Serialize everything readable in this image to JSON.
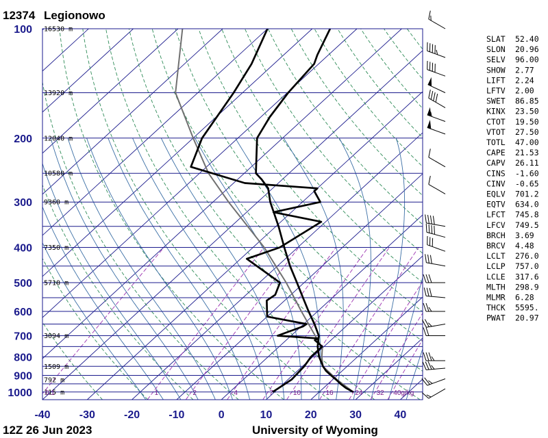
{
  "header": {
    "station_id": "12374",
    "station_name": "Legionowo"
  },
  "footer": {
    "time": "12Z 26 Jun 2023",
    "source": "University of Wyoming"
  },
  "colors": {
    "isobar": "#1a1a8c",
    "isotherm": "#1a1a8c",
    "dry_adiabat": "#2e8b57",
    "moist_adiabat": "#3a6ea5",
    "mixing_ratio": "#9b30b0",
    "temperature": "#000000",
    "dewpoint": "#000000",
    "parcel": "#707070"
  },
  "chart_data": {
    "type": "skew-t log-p",
    "pressure_ticks": [
      100,
      200,
      300,
      400,
      500,
      600,
      700,
      800,
      900,
      1000
    ],
    "temperature_ticks": [
      -40,
      -30,
      -20,
      -10,
      0,
      10,
      20,
      30,
      40
    ],
    "pressure_range_hPa": [
      100,
      1050
    ],
    "temperature_range_C": [
      -40,
      45
    ],
    "height_labels": [
      {
        "p": 100,
        "text": "16530 m"
      },
      {
        "p": 150,
        "text": "13920 m"
      },
      {
        "p": 200,
        "text": "12040 m"
      },
      {
        "p": 250,
        "text": "10580 m"
      },
      {
        "p": 300,
        "text": "9360 m"
      },
      {
        "p": 400,
        "text": "7350 m"
      },
      {
        "p": 500,
        "text": "5710 m"
      },
      {
        "p": 700,
        "text": "3094 m"
      },
      {
        "p": 850,
        "text": "1509 m"
      },
      {
        "p": 925,
        "text": "792 m"
      },
      {
        "p": 1000,
        "text": "115 m"
      }
    ],
    "mixing_ratio_labels": [
      "0.1",
      "1",
      "2",
      "4",
      "7",
      "10",
      "16",
      "24",
      "32",
      "40g/kg"
    ],
    "mixing_ratio_values": [
      0.1,
      1,
      2,
      4,
      7,
      10,
      16,
      24,
      32,
      40
    ],
    "temperature_profile": [
      {
        "p": 1000,
        "t": 27.6
      },
      {
        "p": 975,
        "t": 25.0
      },
      {
        "p": 950,
        "t": 22.8
      },
      {
        "p": 925,
        "t": 20.8
      },
      {
        "p": 900,
        "t": 18.6
      },
      {
        "p": 875,
        "t": 16.4
      },
      {
        "p": 850,
        "t": 14.6
      },
      {
        "p": 800,
        "t": 11.4
      },
      {
        "p": 750,
        "t": 8.6
      },
      {
        "p": 700,
        "t": 6.2
      },
      {
        "p": 650,
        "t": 2.4
      },
      {
        "p": 600,
        "t": -2.0
      },
      {
        "p": 550,
        "t": -6.6
      },
      {
        "p": 500,
        "t": -11.6
      },
      {
        "p": 450,
        "t": -17.2
      },
      {
        "p": 400,
        "t": -23.0
      },
      {
        "p": 350,
        "t": -29.4
      },
      {
        "p": 300,
        "t": -37.2
      },
      {
        "p": 275,
        "t": -41.0
      },
      {
        "p": 260,
        "t": -44.6
      },
      {
        "p": 250,
        "t": -47.4
      },
      {
        "p": 230,
        "t": -50.5
      },
      {
        "p": 200,
        "t": -55.7
      },
      {
        "p": 175,
        "t": -58.0
      },
      {
        "p": 150,
        "t": -59.8
      },
      {
        "p": 125,
        "t": -61.0
      },
      {
        "p": 118,
        "t": -62.5
      },
      {
        "p": 100,
        "t": -66.0
      }
    ],
    "dewpoint_profile": [
      {
        "p": 1000,
        "t": 9.6
      },
      {
        "p": 925,
        "t": 10.8
      },
      {
        "p": 850,
        "t": 10.4
      },
      {
        "p": 800,
        "t": 9.6
      },
      {
        "p": 750,
        "t": 9.6
      },
      {
        "p": 720,
        "t": 6.4
      },
      {
        "p": 712,
        "t": 6.7
      },
      {
        "p": 700,
        "t": -3.0
      },
      {
        "p": 660,
        "t": 0.4
      },
      {
        "p": 650,
        "t": 0.6
      },
      {
        "p": 620,
        "t": -10.0
      },
      {
        "p": 560,
        "t": -14.0
      },
      {
        "p": 540,
        "t": -13.5
      },
      {
        "p": 500,
        "t": -15.4
      },
      {
        "p": 430,
        "t": -28.6
      },
      {
        "p": 400,
        "t": -24.0
      },
      {
        "p": 340,
        "t": -21.0
      },
      {
        "p": 320,
        "t": -34.0
      },
      {
        "p": 300,
        "t": -26.0
      },
      {
        "p": 280,
        "t": -30.0
      },
      {
        "p": 275,
        "t": -30.0
      },
      {
        "p": 266,
        "t": -47.5
      },
      {
        "p": 240,
        "t": -63.5
      },
      {
        "p": 200,
        "t": -68.0
      },
      {
        "p": 150,
        "t": -72.0
      },
      {
        "p": 125,
        "t": -75.0
      },
      {
        "p": 100,
        "t": -80.0
      }
    ],
    "parcel_profile": [
      {
        "p": 1000,
        "t": 27.6
      },
      {
        "p": 925,
        "t": 21.0
      },
      {
        "p": 850,
        "t": 14.6
      },
      {
        "p": 800,
        "t": 12.0
      },
      {
        "p": 757,
        "t": 10.0
      },
      {
        "p": 700,
        "t": 5.4
      },
      {
        "p": 600,
        "t": -3.6
      },
      {
        "p": 500,
        "t": -14.0
      },
      {
        "p": 400,
        "t": -27.5
      },
      {
        "p": 300,
        "t": -46.5
      },
      {
        "p": 250,
        "t": -58.0
      },
      {
        "p": 200,
        "t": -70.0
      },
      {
        "p": 150,
        "t": -85.0
      },
      {
        "p": 100,
        "t": -99.0
      }
    ],
    "wind_barbs": [
      {
        "p": 100,
        "dir": 300,
        "spd": 15
      },
      {
        "p": 120,
        "dir": 290,
        "spd": 45
      },
      {
        "p": 135,
        "dir": 290,
        "spd": 40
      },
      {
        "p": 150,
        "dir": 295,
        "spd": 50
      },
      {
        "p": 165,
        "dir": 300,
        "spd": 40
      },
      {
        "p": 180,
        "dir": 290,
        "spd": 55
      },
      {
        "p": 195,
        "dir": 290,
        "spd": 50
      },
      {
        "p": 240,
        "dir": 300,
        "spd": 10
      },
      {
        "p": 285,
        "dir": 300,
        "spd": 10
      },
      {
        "p": 350,
        "dir": 280,
        "spd": 40
      },
      {
        "p": 375,
        "dir": 285,
        "spd": 40
      },
      {
        "p": 410,
        "dir": 290,
        "spd": 30
      },
      {
        "p": 450,
        "dir": 280,
        "spd": 30
      },
      {
        "p": 500,
        "dir": 270,
        "spd": 30
      },
      {
        "p": 550,
        "dir": 275,
        "spd": 30
      },
      {
        "p": 600,
        "dir": 270,
        "spd": 25
      },
      {
        "p": 650,
        "dir": 260,
        "spd": 25
      },
      {
        "p": 700,
        "dir": 270,
        "spd": 20
      },
      {
        "p": 820,
        "dir": 270,
        "spd": 35
      },
      {
        "p": 860,
        "dir": 265,
        "spd": 35
      },
      {
        "p": 920,
        "dir": 250,
        "spd": 25
      },
      {
        "p": 980,
        "dir": 240,
        "spd": 15
      }
    ]
  },
  "indices": [
    {
      "key": "SLAT",
      "value": "52.40"
    },
    {
      "key": "SLON",
      "value": "20.96"
    },
    {
      "key": "SELV",
      "value": "96.00"
    },
    {
      "key": "SHOW",
      "value": "2.77"
    },
    {
      "key": "LIFT",
      "value": "2.24"
    },
    {
      "key": "LFTV",
      "value": "2.00"
    },
    {
      "key": "SWET",
      "value": "86.85"
    },
    {
      "key": "KINX",
      "value": "23.50"
    },
    {
      "key": "CTOT",
      "value": "19.50"
    },
    {
      "key": "VTOT",
      "value": "27.50"
    },
    {
      "key": "TOTL",
      "value": "47.00"
    },
    {
      "key": "CAPE",
      "value": "21.53"
    },
    {
      "key": "CAPV",
      "value": "26.11"
    },
    {
      "key": "CINS",
      "value": "-1.60"
    },
    {
      "key": "CINV",
      "value": "-0.65"
    },
    {
      "key": "EQLV",
      "value": "701.2"
    },
    {
      "key": "EQTV",
      "value": "634.0"
    },
    {
      "key": "LFCT",
      "value": "745.8"
    },
    {
      "key": "LFCV",
      "value": "749.5"
    },
    {
      "key": "BRCH",
      "value": "3.69"
    },
    {
      "key": "BRCV",
      "value": "4.48"
    },
    {
      "key": "LCLT",
      "value": "276.0"
    },
    {
      "key": "LCLP",
      "value": "757.0"
    },
    {
      "key": "LCLE",
      "value": "317.6"
    },
    {
      "key": "MLTH",
      "value": "298.9"
    },
    {
      "key": "MLMR",
      "value": "6.28"
    },
    {
      "key": "THCK",
      "value": "5595."
    },
    {
      "key": "PWAT",
      "value": "20.97"
    }
  ]
}
